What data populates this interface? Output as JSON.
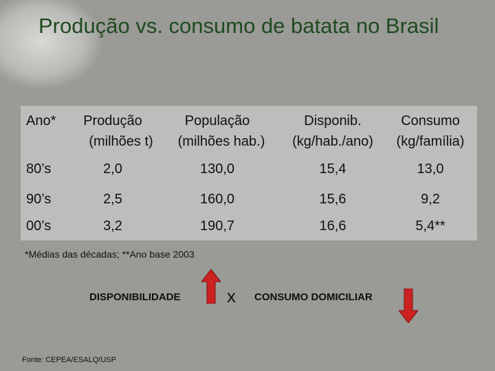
{
  "title": "Produção vs. consumo de batata no Brasil",
  "table": {
    "headers": {
      "col1": "Ano*",
      "col2_line1": "Produção",
      "col2_line2": "(milhões t)",
      "col3_line1": "População",
      "col3_line2": "(milhões hab.)",
      "col4_line1": "Disponib.",
      "col4_line2": "(kg/hab./ano)",
      "col5_line1": "Consumo",
      "col5_line2": "(kg/família)"
    },
    "rows": [
      {
        "ano": "80’s",
        "producao": "2,0",
        "populacao": "130,0",
        "disponib": "15,4",
        "consumo": "13,0"
      },
      {
        "ano": "90’s",
        "producao": "2,5",
        "populacao": "160,0",
        "disponib": "15,6",
        "consumo": "9,2"
      },
      {
        "ano": "00’s",
        "producao": "3,2",
        "populacao": "190,7",
        "disponib": "16,6",
        "consumo": "5,4**"
      }
    ]
  },
  "footnote": "*Médias das décadas; **Ano base 2003",
  "comparison": {
    "left_label": "DISPONIBILIDADE",
    "separator": "x",
    "right_label": "CONSUMO DOMICILIAR",
    "left_arrow": "arrow-up-icon",
    "right_arrow": "arrow-down-icon",
    "arrow_color": "#cc2222"
  },
  "source": "Fonte: CEPEA/ESALQ/USP"
}
